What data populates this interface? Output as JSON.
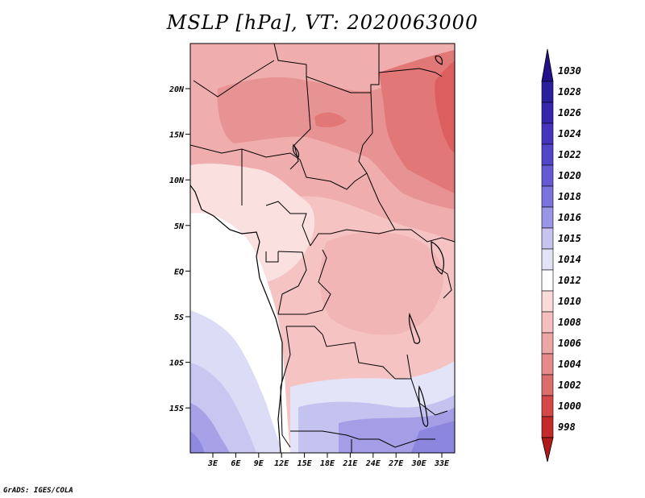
{
  "title": "MSLP [hPa], VT: 2020063000",
  "credit": "GrADS: IGES/COLA",
  "map": {
    "lat_ticks": [
      "20N",
      "15N",
      "10N",
      "5N",
      "EQ",
      "5S",
      "10S",
      "15S"
    ],
    "lon_ticks": [
      "3E",
      "6E",
      "9E",
      "12E",
      "15E",
      "18E",
      "21E",
      "24E",
      "27E",
      "30E",
      "33E"
    ]
  },
  "colorbar": {
    "labels": [
      "1030",
      "1028",
      "1026",
      "1024",
      "1022",
      "1020",
      "1018",
      "1016",
      "1015",
      "1014",
      "1012",
      "1010",
      "1008",
      "1006",
      "1004",
      "1002",
      "1000",
      "998"
    ],
    "colors": [
      "#221188",
      "#2a1f9c",
      "#3526ad",
      "#4434be",
      "#5246c8",
      "#655ad4",
      "#7a73dc",
      "#9a96e6",
      "#c7c5f0",
      "#e3e3f8",
      "#ffffff",
      "#fbdada",
      "#f6bfbf",
      "#eda6a6",
      "#e58b8b",
      "#dc6d6d",
      "#d44848",
      "#c42a2a",
      "#b01a1a"
    ]
  },
  "colors": {
    "low_pressure": "#e06060",
    "high_pressure": "#7f79d9",
    "neutral": "#ffffff"
  }
}
